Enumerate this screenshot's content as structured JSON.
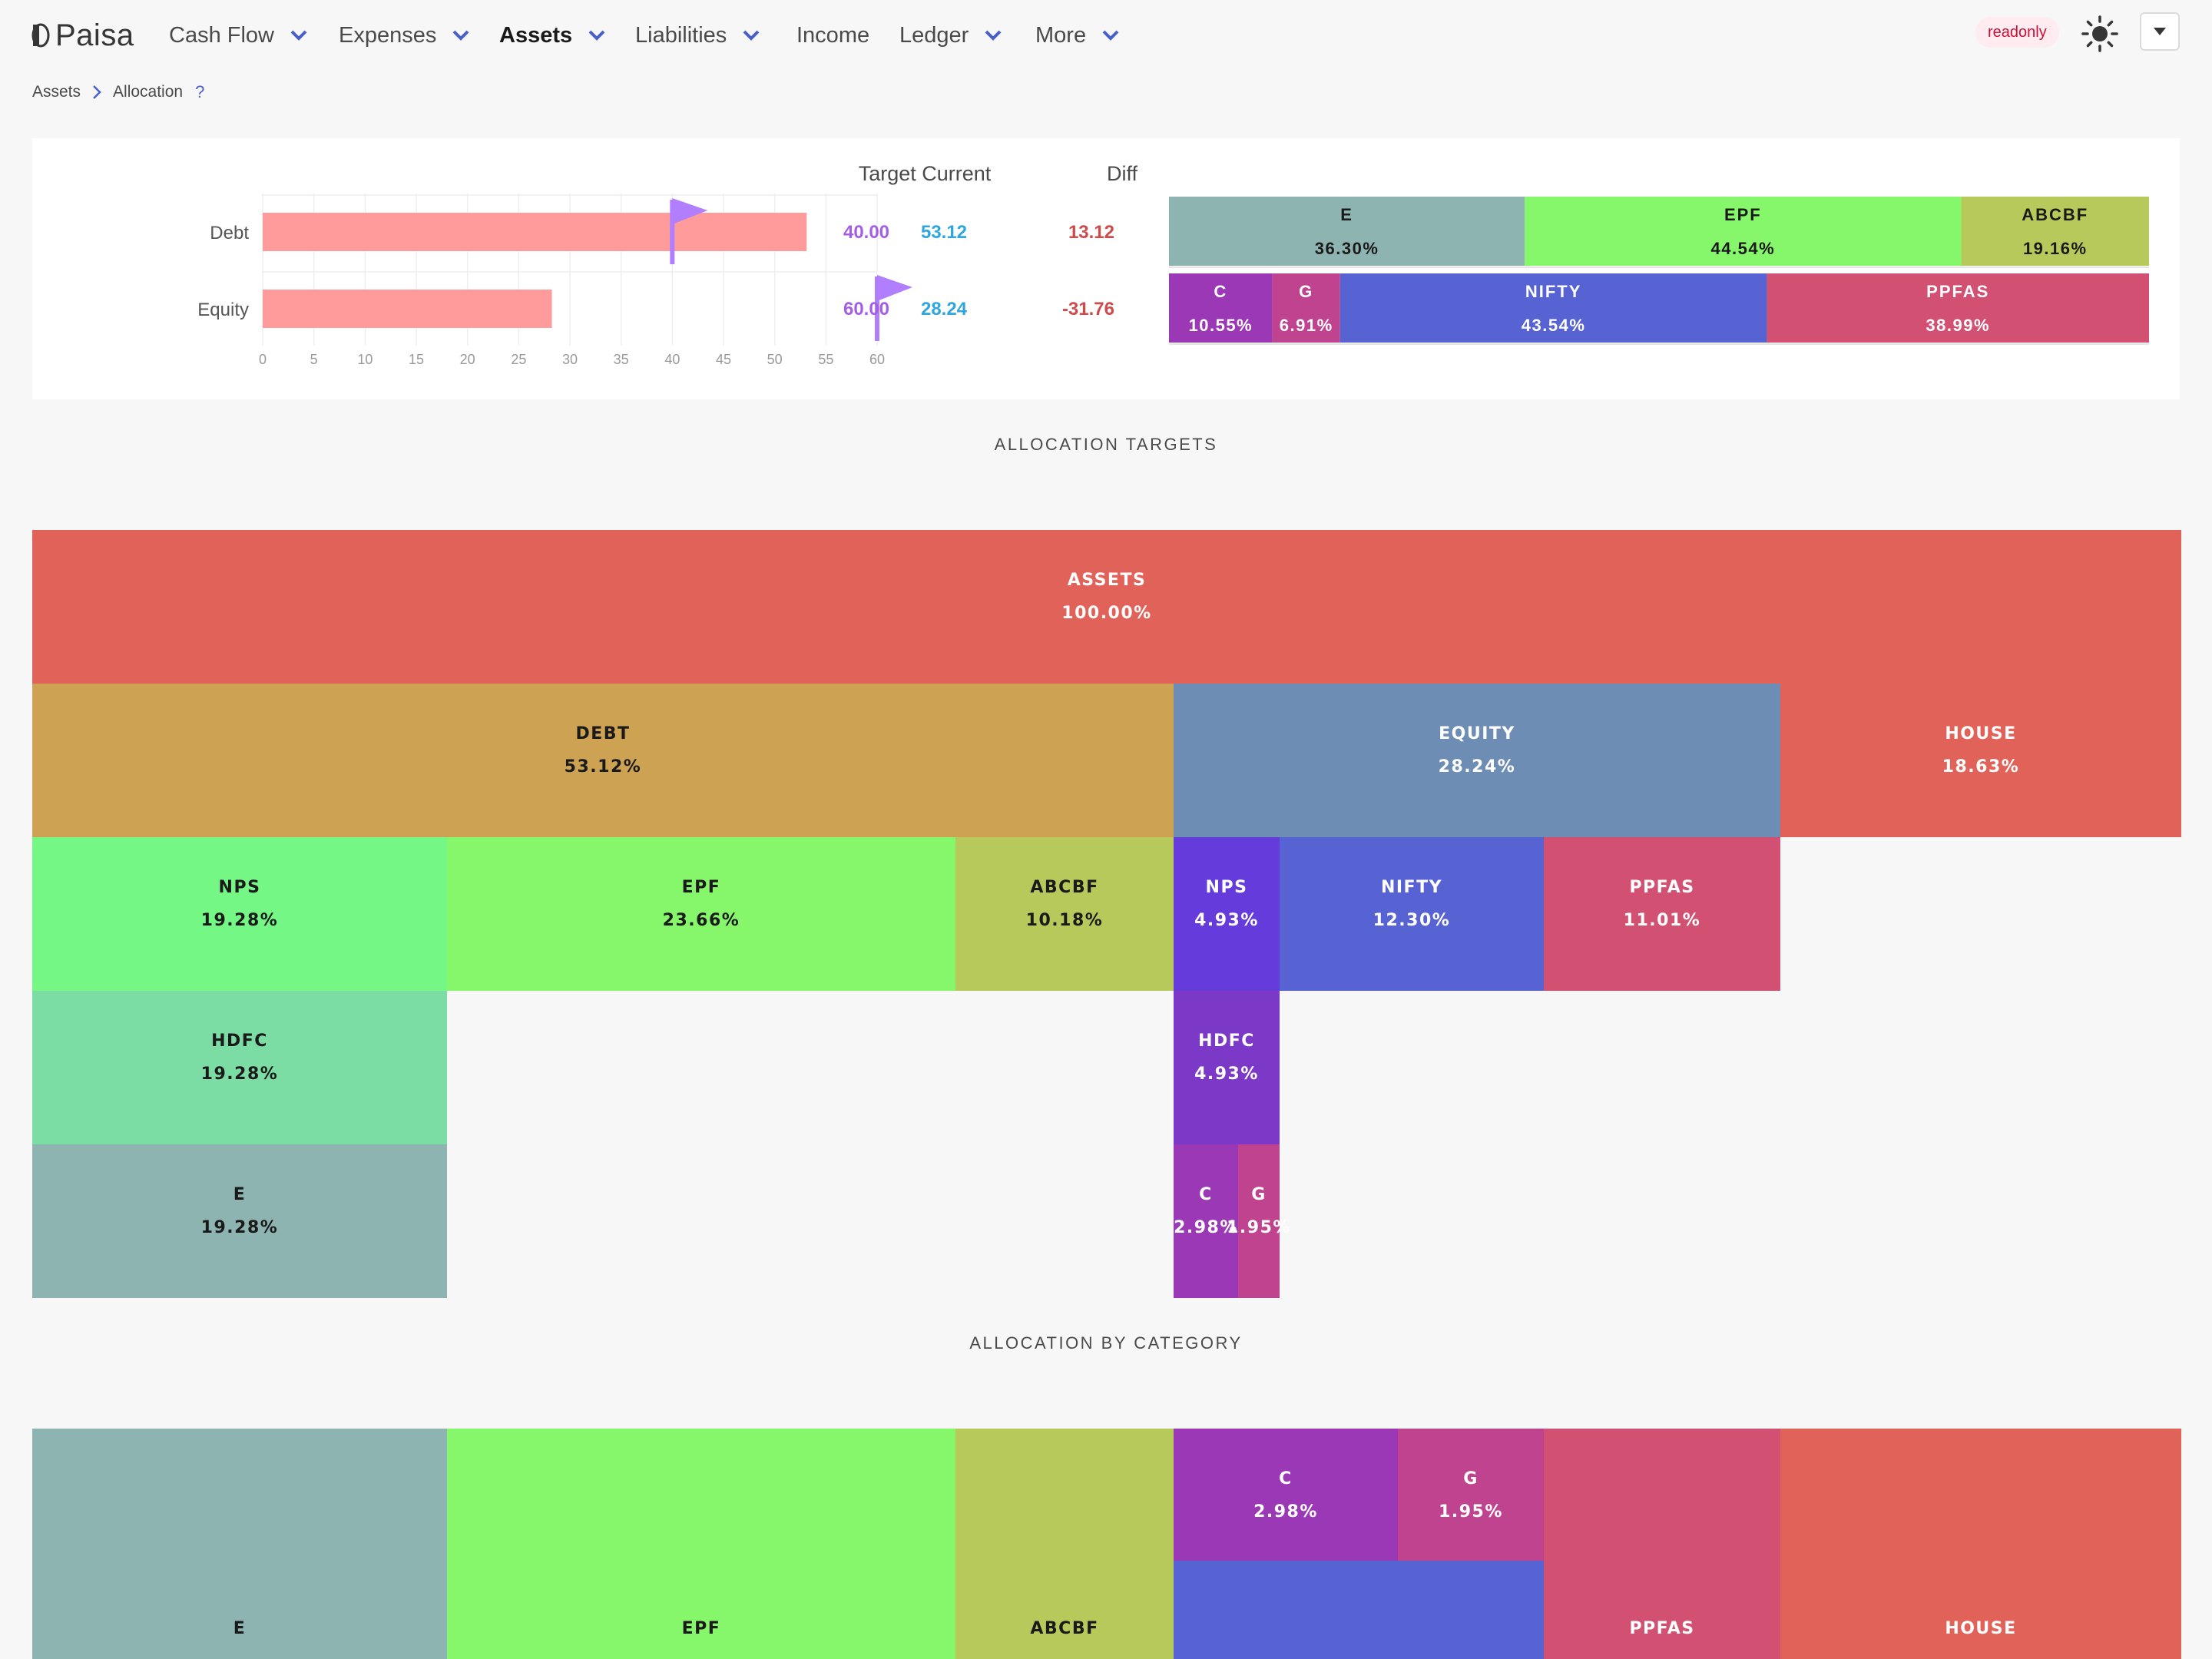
{
  "brand": {
    "name": "Paisa"
  },
  "nav": {
    "items": [
      {
        "label": "Cash Flow",
        "dropdown": true
      },
      {
        "label": "Expenses",
        "dropdown": true
      },
      {
        "label": "Assets",
        "dropdown": true,
        "active": true
      },
      {
        "label": "Liabilities",
        "dropdown": true
      },
      {
        "label": "Income",
        "dropdown": false
      },
      {
        "label": "Ledger",
        "dropdown": true
      },
      {
        "label": "More",
        "dropdown": true
      }
    ],
    "readonly_tag": "readonly",
    "theme_icon": "sun-icon",
    "menu_icon": "caret-down-icon"
  },
  "breadcrumb": {
    "items": [
      "Assets",
      "Allocation"
    ],
    "help": "?"
  },
  "allocation": {
    "headers": {
      "target_current": "Target Current",
      "diff": "Diff"
    },
    "axis_ticks": [
      "0",
      "5",
      "10",
      "15",
      "20",
      "25",
      "30",
      "35",
      "40",
      "45",
      "50",
      "55",
      "60"
    ],
    "axis_max": 60,
    "rows": [
      {
        "name": "Debt",
        "target": 40,
        "current": 53.12,
        "target_text": "40.00",
        "current_text": "53.12",
        "diff_text": "13.12",
        "breakdown": [
          {
            "label": "E",
            "pct": "36.30%",
            "share": 36.3,
            "color": "#8eb4b2",
            "text": "dark"
          },
          {
            "label": "EPF",
            "pct": "44.54%",
            "share": 44.54,
            "color": "#86f66a",
            "text": "dark"
          },
          {
            "label": "ABCBF",
            "pct": "19.16%",
            "share": 19.16,
            "color": "#b8c95c",
            "text": "dark"
          }
        ]
      },
      {
        "name": "Equity",
        "target": 60,
        "current": 28.24,
        "target_text": "60.00",
        "current_text": "28.24",
        "diff_text": "-31.76",
        "breakdown": [
          {
            "label": "C",
            "pct": "10.55%",
            "share": 10.55,
            "color": "#9b38b6",
            "text": "light"
          },
          {
            "label": "G",
            "pct": "6.91%",
            "share": 6.91,
            "color": "#c0438f",
            "text": "light"
          },
          {
            "label": "NIFTY",
            "pct": "43.54%",
            "share": 43.54,
            "color": "#5763d3",
            "text": "light"
          },
          {
            "label": "PPFAS",
            "pct": "38.99%",
            "share": 38.99,
            "color": "#d25173",
            "text": "light"
          }
        ]
      }
    ],
    "colors": {
      "bar": "#ff9b9b",
      "flag": "#b17efe",
      "target": "#a25fe3",
      "current": "#2fa6dc",
      "diff": "#cc4b4b",
      "grid": "#eeeeee",
      "tick": "#999999"
    }
  },
  "sections": {
    "targets_title": "ALLOCATION TARGETS",
    "category_title": "ALLOCATION BY CATEGORY"
  },
  "treemap_targets": [
    {
      "label": "ASSETS",
      "pct": "100.00%",
      "color": "#e06258",
      "text": "light"
    },
    {
      "label": "DEBT",
      "pct": "53.12%",
      "color": "#cea253",
      "text": "dark"
    },
    {
      "label": "EQUITY",
      "pct": "28.24%",
      "color": "#6e8db4",
      "text": "light"
    },
    {
      "label": "HOUSE",
      "pct": "18.63%",
      "color": "#e06258",
      "text": "light"
    },
    {
      "label": "NPS",
      "pct": "19.28%",
      "color": "#75f786",
      "text": "dark"
    },
    {
      "label": "EPF",
      "pct": "23.66%",
      "color": "#86f66a",
      "text": "dark"
    },
    {
      "label": "ABCBF",
      "pct": "10.18%",
      "color": "#b8c95c",
      "text": "dark"
    },
    {
      "label": "NPS",
      "pct": "4.93%",
      "color": "#653bdb",
      "text": "light"
    },
    {
      "label": "NIFTY",
      "pct": "12.30%",
      "color": "#5763d3",
      "text": "light"
    },
    {
      "label": "PPFAS",
      "pct": "11.01%",
      "color": "#d25173",
      "text": "light"
    },
    {
      "label": "HDFC",
      "pct": "19.28%",
      "color": "#7bdda4",
      "text": "dark"
    },
    {
      "label": "HDFC",
      "pct": "4.93%",
      "color": "#7c39c8",
      "text": "light"
    },
    {
      "label": "E",
      "pct": "19.28%",
      "color": "#8eb4b2",
      "text": "dark"
    },
    {
      "label": "C",
      "pct": "2.98%",
      "color": "#9b38b6",
      "text": "light"
    },
    {
      "label": "G",
      "pct": "1.95%",
      "color": "#c0438f",
      "text": "light"
    }
  ],
  "treemap_category": [
    {
      "label": "E",
      "pct": "",
      "color": "#8eb4b2",
      "text": "dark"
    },
    {
      "label": "EPF",
      "pct": "",
      "color": "#86f66a",
      "text": "dark"
    },
    {
      "label": "ABCBF",
      "pct": "",
      "color": "#b8c95c",
      "text": "dark"
    },
    {
      "label": "C",
      "pct": "2.98%",
      "color": "#9b38b6",
      "text": "light"
    },
    {
      "label": "G",
      "pct": "1.95%",
      "color": "#c0438f",
      "text": "light"
    },
    {
      "label": "",
      "pct": "",
      "color": "#5763d3",
      "text": "light"
    },
    {
      "label": "PPFAS",
      "pct": "",
      "color": "#d25173",
      "text": "light"
    },
    {
      "label": "HOUSE",
      "pct": "",
      "color": "#e06258",
      "text": "light"
    }
  ]
}
